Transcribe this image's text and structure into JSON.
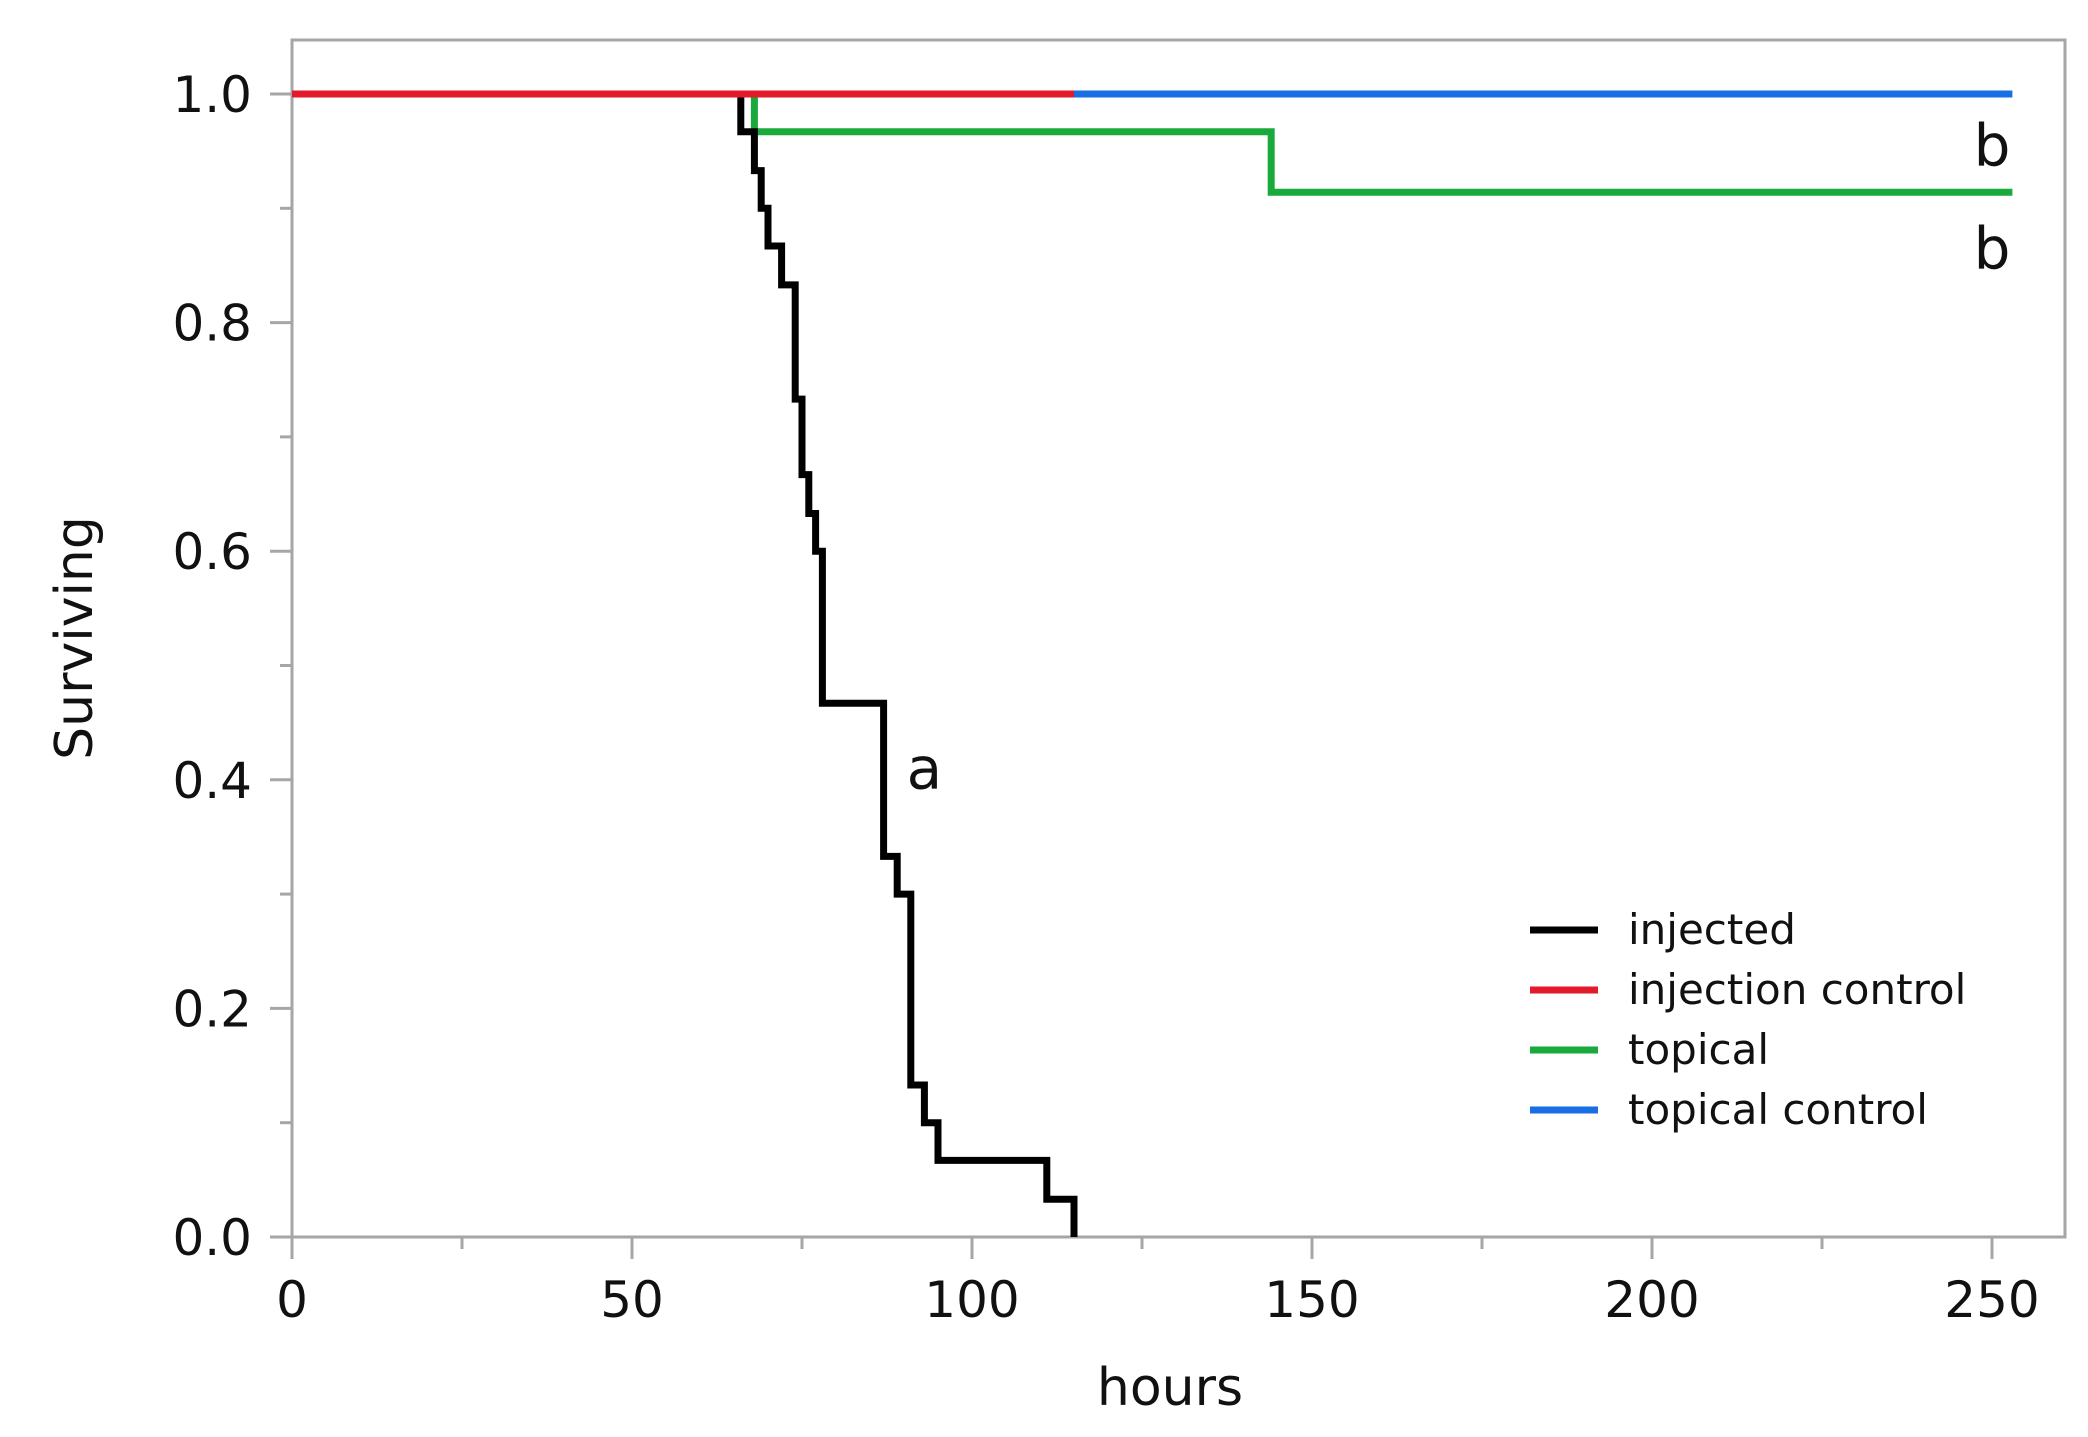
{
  "chart_data": {
    "type": "line",
    "step": true,
    "xlabel": "hours",
    "ylabel": "Surviving",
    "xlim": [
      0,
      260
    ],
    "ylim": [
      0,
      1.05
    ],
    "x_ticks": [
      0,
      50,
      100,
      150,
      200,
      250
    ],
    "x_tick_labels": [
      "0",
      "50",
      "100",
      "150",
      "200",
      "250"
    ],
    "x_minor_ticks": [
      25,
      75,
      125,
      175,
      225
    ],
    "y_ticks": [
      0,
      0.2,
      0.4,
      0.6,
      0.8,
      1.0
    ],
    "y_tick_labels": [
      "0.0",
      "0.2",
      "0.4",
      "0.6",
      "0.8",
      "1.0"
    ],
    "y_minor_ticks": [
      0.1,
      0.3,
      0.5,
      0.7,
      0.9
    ],
    "grid": false,
    "legend_position": "bottom-right",
    "series": [
      {
        "name": "injected",
        "color": "#000000",
        "x": [
          0,
          66,
          68,
          69,
          70,
          72,
          74,
          75,
          76,
          77,
          78,
          87,
          89,
          91,
          93,
          95,
          111,
          115
        ],
        "y": [
          1.0,
          0.967,
          0.933,
          0.9,
          0.867,
          0.833,
          0.733,
          0.667,
          0.633,
          0.6,
          0.467,
          0.333,
          0.3,
          0.133,
          0.1,
          0.067,
          0.033,
          0.0
        ]
      },
      {
        "name": "injection control",
        "color": "#e31a2c",
        "x": [
          0,
          115
        ],
        "y": [
          1.0,
          1.0
        ]
      },
      {
        "name": "topical",
        "color": "#1aaa3c",
        "x": [
          0,
          68,
          144,
          253
        ],
        "y": [
          1.0,
          0.967,
          0.914,
          0.914
        ]
      },
      {
        "name": "topical control",
        "color": "#1a6ee3",
        "x": [
          115,
          253
        ],
        "y": [
          1.0,
          1.0
        ]
      }
    ],
    "draw_order": [
      "topical control",
      "topical",
      "injected",
      "injection control"
    ],
    "annotations": [
      {
        "text": "a",
        "x": 93,
        "y": 0.41
      },
      {
        "text": "b",
        "x": 250,
        "y": 0.955
      },
      {
        "text": "b",
        "x": 250,
        "y": 0.865
      }
    ]
  }
}
